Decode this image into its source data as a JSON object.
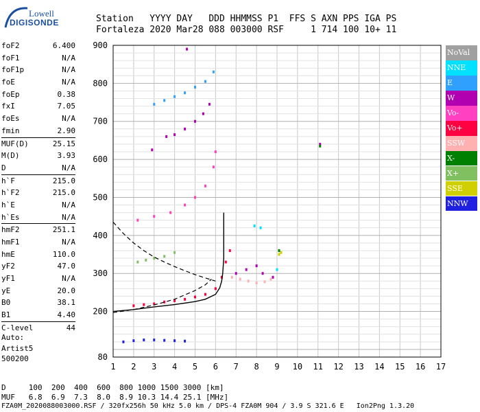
{
  "logo": {
    "line1": "Lowell",
    "line2": "DIGISONDE"
  },
  "header": {
    "line1": "Station   YYYY DAY   DDD HHMMSS P1  FFS S AXN PPS IGA PS",
    "line2": "Fortaleza 2020 Mar28 088 003000 RSF     1 714 100 10+ 11"
  },
  "params": [
    {
      "label": "foF2",
      "value": "6.400"
    },
    {
      "label": "foF1",
      "value": "N/A"
    },
    {
      "label": "foF1p",
      "value": "N/A"
    },
    {
      "label": "foE",
      "value": "N/A"
    },
    {
      "label": "foEp",
      "value": "0.38"
    },
    {
      "label": "fxI",
      "value": "7.05"
    },
    {
      "label": "foEs",
      "value": "N/A"
    },
    {
      "label": "fmin",
      "value": "2.90"
    },
    {
      "label": "MUF(D)",
      "value": "25.15",
      "sep": true
    },
    {
      "label": "M(D)",
      "value": "3.93"
    },
    {
      "label": "D",
      "value": "N/A"
    },
    {
      "label": "h`F",
      "value": "215.0",
      "sep": true
    },
    {
      "label": "h`F2",
      "value": "215.0"
    },
    {
      "label": "h`E",
      "value": "N/A"
    },
    {
      "label": "h`Es",
      "value": "N/A"
    },
    {
      "label": "hmF2",
      "value": "251.1",
      "sep": true
    },
    {
      "label": "hmF1",
      "value": "N/A"
    },
    {
      "label": "hmE",
      "value": "110.0"
    },
    {
      "label": "yF2",
      "value": "47.0"
    },
    {
      "label": "yF1",
      "value": "N/A"
    },
    {
      "label": "yE",
      "value": "20.0"
    },
    {
      "label": "B0",
      "value": "38.1"
    },
    {
      "label": "B1",
      "value": "4.40"
    },
    {
      "label": "C-level",
      "value": "44",
      "sep": true
    }
  ],
  "auto": {
    "line1": "Auto:",
    "line2": "Artist5",
    "line3": "500200"
  },
  "legend": [
    {
      "label": "NoVal",
      "color": "#a0a0a0"
    },
    {
      "label": "NNE",
      "color": "#00e0ff"
    },
    {
      "label": "E",
      "color": "#30a0ff"
    },
    {
      "label": "W",
      "color": "#b000b0"
    },
    {
      "label": "Vo-",
      "color": "#ff40c0"
    },
    {
      "label": "Vo+",
      "color": "#ff0040"
    },
    {
      "label": "SSW",
      "color": "#ffb0b0"
    },
    {
      "label": "X-",
      "color": "#008000"
    },
    {
      "label": "X+",
      "color": "#80c060"
    },
    {
      "label": "SSE",
      "color": "#d0d000"
    },
    {
      "label": "NNW",
      "color": "#2020e0"
    }
  ],
  "table": {
    "line1": "D     100  200  400  600  800 1000 1500 3000 [km]",
    "line2": "MUF   6.8  6.9  7.3  8.0  8.9 10.3 14.4 25.1 [MHz]"
  },
  "footer": "FZA0M_2020088003000.RSF / 320fx256h 50 kHz 5.0 km / DPS-4 FZA0M 904 / 3.9 S 321.6 E   Ion2Png 1.3.20",
  "chart_data": {
    "type": "scatter",
    "xlim": [
      1,
      17
    ],
    "ylim": [
      80,
      900
    ],
    "x_ticks": [
      1,
      2,
      3,
      4,
      5,
      6,
      7,
      8,
      9,
      10,
      11,
      12,
      13,
      14,
      15,
      16,
      17
    ],
    "y_ticks": [
      80,
      200,
      300,
      400,
      500,
      600,
      700,
      800,
      900
    ],
    "y_tick_labels": [
      "80",
      "200",
      "300",
      "400",
      "500",
      "600",
      "700",
      "800",
      "900"
    ],
    "grid": true,
    "series": [
      {
        "color": "#30a0ff",
        "points": [
          [
            3.0,
            745
          ],
          [
            3.5,
            755
          ],
          [
            4.0,
            765
          ],
          [
            4.5,
            775
          ],
          [
            5.0,
            790
          ],
          [
            5.5,
            805
          ],
          [
            5.9,
            830
          ]
        ]
      },
      {
        "color": "#b000b0",
        "points": [
          [
            3.6,
            660
          ],
          [
            4.0,
            665
          ],
          [
            4.5,
            680
          ],
          [
            5.0,
            700
          ],
          [
            5.4,
            720
          ],
          [
            5.7,
            745
          ],
          [
            4.6,
            890
          ],
          [
            2.9,
            625
          ],
          [
            11.1,
            640
          ]
        ]
      },
      {
        "color": "#ff40c0",
        "points": [
          [
            2.2,
            440
          ],
          [
            3.0,
            450
          ],
          [
            3.8,
            460
          ],
          [
            4.5,
            480
          ],
          [
            5.0,
            500
          ],
          [
            5.5,
            530
          ],
          [
            5.9,
            580
          ],
          [
            6.0,
            620
          ]
        ]
      },
      {
        "color": "#80c060",
        "points": [
          [
            2.2,
            330
          ],
          [
            2.6,
            335
          ],
          [
            3.0,
            340
          ],
          [
            3.5,
            345
          ],
          [
            4.0,
            355
          ]
        ]
      },
      {
        "color": "#ff0040",
        "points": [
          [
            2.0,
            215
          ],
          [
            2.5,
            218
          ],
          [
            3.0,
            220
          ],
          [
            3.5,
            225
          ],
          [
            4.0,
            228
          ],
          [
            4.5,
            232
          ],
          [
            5.0,
            238
          ],
          [
            5.5,
            245
          ],
          [
            6.0,
            260
          ],
          [
            6.3,
            290
          ],
          [
            6.5,
            330
          ],
          [
            6.7,
            360
          ]
        ]
      },
      {
        "color": "#ffb0b0",
        "points": [
          [
            6.8,
            290
          ],
          [
            7.2,
            285
          ],
          [
            7.6,
            280
          ],
          [
            8.0,
            275
          ],
          [
            8.4,
            278
          ],
          [
            8.7,
            285
          ]
        ]
      },
      {
        "color": "#b000b0",
        "points": [
          [
            7.0,
            300
          ],
          [
            7.5,
            310
          ],
          [
            8.0,
            320
          ],
          [
            8.3,
            300
          ],
          [
            8.8,
            290
          ]
        ]
      },
      {
        "color": "#2020e0",
        "points": [
          [
            1.5,
            120
          ],
          [
            2.0,
            123
          ],
          [
            2.5,
            125
          ],
          [
            3.0,
            125
          ],
          [
            3.5,
            124
          ],
          [
            4.0,
            123
          ],
          [
            4.5,
            122
          ]
        ]
      },
      {
        "color": "#00e0ff",
        "points": [
          [
            7.9,
            425
          ],
          [
            8.2,
            420
          ],
          [
            9.0,
            310
          ]
        ]
      },
      {
        "color": "#d0d000",
        "points": [
          [
            9.1,
            350
          ],
          [
            9.2,
            355
          ]
        ]
      },
      {
        "color": "#008000",
        "points": [
          [
            11.1,
            635
          ],
          [
            9.1,
            360
          ]
        ]
      }
    ],
    "curves": [
      {
        "name": "dashed-upper",
        "style": "dashed",
        "points": [
          [
            1.0,
            435
          ],
          [
            1.5,
            405
          ],
          [
            2.0,
            380
          ],
          [
            2.5,
            360
          ],
          [
            3.0,
            343
          ],
          [
            3.5,
            330
          ],
          [
            4.0,
            318
          ],
          [
            4.5,
            307
          ],
          [
            5.0,
            297
          ],
          [
            5.5,
            288
          ],
          [
            6.0,
            280
          ]
        ]
      },
      {
        "name": "dashed-lower",
        "style": "dashed",
        "points": [
          [
            1.0,
            197
          ],
          [
            2.0,
            205
          ],
          [
            3.0,
            217
          ],
          [
            4.0,
            232
          ],
          [
            5.0,
            255
          ],
          [
            5.5,
            270
          ],
          [
            5.8,
            285
          ]
        ]
      },
      {
        "name": "solid-profile",
        "style": "solid",
        "points": [
          [
            1.0,
            200
          ],
          [
            2.0,
            205
          ],
          [
            3.0,
            212
          ],
          [
            4.0,
            218
          ],
          [
            5.0,
            226
          ],
          [
            5.5,
            232
          ],
          [
            6.0,
            245
          ],
          [
            6.2,
            262
          ],
          [
            6.3,
            280
          ],
          [
            6.35,
            300
          ],
          [
            6.4,
            340
          ],
          [
            6.4,
            460
          ]
        ]
      }
    ]
  }
}
